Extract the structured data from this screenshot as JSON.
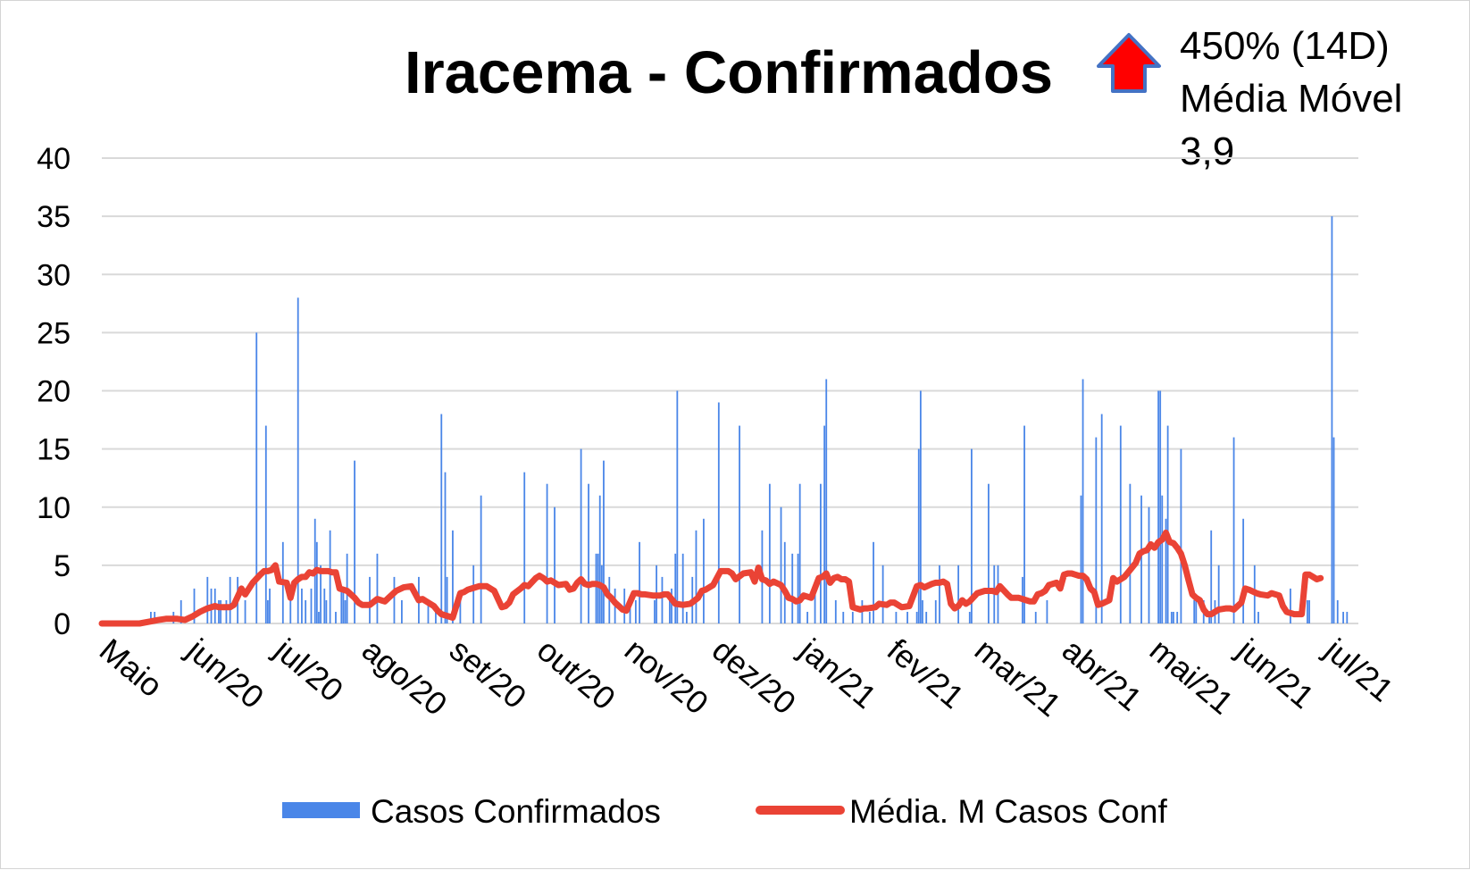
{
  "chart_data": {
    "type": "bar",
    "title": "Iracema - Confirmados",
    "badge": {
      "line1": "450% (14D)",
      "line2": "Média Móvel",
      "line3": "3,9",
      "arrow": "up-arrow-icon",
      "arrow_color": "#ff0000",
      "arrow_border": "#4472c4"
    },
    "y_ticks": [
      "0",
      "5",
      "10",
      "15",
      "20",
      "25",
      "30",
      "35",
      "40"
    ],
    "ylim": [
      0,
      40
    ],
    "grid": true,
    "x_tick_labels": [
      "Maio",
      "jun/20",
      "jul/20",
      "ago/20",
      "set/20",
      "out/20",
      "nov/20",
      "dez/20",
      "jan/21",
      "fev/21",
      "mar/21",
      "abr/21",
      "mai/21",
      "jun/21",
      "jul/21"
    ],
    "legend_position": "bottom",
    "series": [
      {
        "name": "Casos Confirmados",
        "type": "bar",
        "color": "#4a86e8",
        "values_day_index": [
          26,
          28,
          38,
          42,
          49,
          56,
          58,
          60,
          62,
          63,
          66,
          68,
          72,
          76,
          82,
          87,
          88,
          89,
          96,
          100,
          104,
          106,
          108,
          111,
          113,
          114,
          115,
          116,
          118,
          119,
          121,
          124,
          127,
          128,
          129,
          130,
          134,
          142,
          146,
          155,
          159,
          168,
          173,
          177,
          180,
          182,
          183,
          186,
          190,
          197,
          201,
          224,
          236,
          240,
          254,
          258,
          262,
          263,
          264,
          265,
          266,
          269,
          272,
          277,
          280,
          283,
          285,
          293,
          294,
          297,
          301,
          302,
          304,
          305,
          308,
          310,
          313,
          315,
          319,
          327,
          338,
          350,
          354,
          360,
          362,
          366,
          369,
          370,
          374,
          378,
          381,
          383,
          384,
          389,
          393,
          398,
          403,
          407,
          409,
          414,
          421,
          427,
          432,
          433,
          434,
          435,
          437,
          442,
          444,
          454,
          460,
          461,
          470,
          473,
          475,
          488,
          489,
          495,
          501,
          519,
          520,
          527,
          530,
          540,
          545,
          551,
          555,
          560,
          561,
          562,
          564,
          565,
          567,
          568,
          570,
          572,
          579,
          580,
          584,
          587,
          588,
          590,
          592,
          600,
          605,
          611,
          613,
          630,
          639,
          640,
          652,
          653,
          655,
          658,
          660
        ],
        "values": [
          1,
          1,
          1,
          2,
          3,
          4,
          3,
          3,
          2,
          2,
          2,
          4,
          4,
          2,
          25,
          17,
          2,
          3,
          7,
          3,
          28,
          3,
          2,
          3,
          9,
          7,
          1,
          5,
          3,
          2,
          8,
          1,
          3,
          3,
          2,
          6,
          14,
          4,
          6,
          4,
          2,
          4,
          2,
          1,
          18,
          13,
          4,
          8,
          2,
          5,
          11,
          13,
          12,
          10,
          15,
          12,
          6,
          6,
          11,
          5,
          14,
          4,
          3,
          3,
          2,
          2,
          7,
          2,
          5,
          4,
          2,
          3,
          6,
          20,
          6,
          1,
          4,
          8,
          9,
          19,
          17,
          8,
          12,
          10,
          7,
          6,
          6,
          12,
          1,
          3,
          12,
          17,
          21,
          2,
          1,
          1,
          2,
          1,
          7,
          5,
          1,
          1,
          1,
          15,
          20,
          2,
          1,
          2,
          5,
          5,
          1,
          15,
          12,
          5,
          5,
          4,
          17,
          1,
          2,
          11,
          21,
          16,
          18,
          17,
          12,
          11,
          10,
          20,
          20,
          11,
          9,
          17,
          1,
          1,
          1,
          15,
          2,
          2,
          2,
          1,
          8,
          2,
          5,
          16,
          9,
          5,
          1,
          3,
          2,
          2,
          35,
          16,
          2,
          1,
          1
        ]
      },
      {
        "name": "Média. M Casos Conf",
        "type": "line",
        "color": "#ea4335",
        "x_day_index": [
          0,
          20,
          30,
          34,
          40,
          44,
          48,
          52,
          56,
          60,
          62,
          64,
          68,
          70,
          74,
          76,
          80,
          84,
          86,
          88,
          90,
          92,
          94,
          98,
          100,
          102,
          104,
          106,
          108,
          110,
          112,
          114,
          116,
          118,
          120,
          122,
          124,
          126,
          130,
          132,
          134,
          136,
          138,
          140,
          142,
          146,
          148,
          150,
          152,
          154,
          156,
          160,
          164,
          166,
          168,
          170,
          172,
          176,
          178,
          180,
          182,
          186,
          190,
          192,
          194,
          196,
          200,
          204,
          208,
          212,
          214,
          216,
          218,
          222,
          224,
          226,
          230,
          232,
          234,
          236,
          238,
          242,
          246,
          248,
          250,
          252,
          254,
          256,
          258,
          260,
          262,
          264,
          266,
          268,
          270,
          272,
          274,
          276,
          278,
          282,
          284,
          286,
          288,
          292,
          294,
          296,
          298,
          300,
          304,
          308,
          312,
          316,
          318,
          320,
          324,
          328,
          332,
          334,
          336,
          340,
          344,
          346,
          348,
          350,
          352,
          354,
          356,
          360,
          362,
          364,
          366,
          368,
          370,
          372,
          376,
          380,
          382,
          384,
          386,
          388,
          390,
          392,
          394,
          396,
          398,
          402,
          404,
          406,
          410,
          412,
          416,
          418,
          420,
          424,
          428,
          432,
          434,
          436,
          440,
          442,
          444,
          446,
          448,
          450,
          452,
          454,
          456,
          458,
          460,
          464,
          468,
          472,
          474,
          476,
          480,
          482,
          486,
          490,
          492,
          494,
          496,
          498,
          500,
          502,
          506,
          508,
          510,
          512,
          514,
          516,
          518,
          520,
          522,
          524,
          526,
          528,
          530,
          534,
          536,
          538,
          540,
          542,
          546,
          548,
          550,
          552,
          554,
          556,
          558,
          560,
          562,
          564,
          566,
          568,
          570,
          572,
          574,
          576,
          578,
          580,
          582,
          584,
          586,
          588,
          590,
          592,
          596,
          598,
          600,
          604,
          606,
          608,
          612,
          614,
          618,
          620,
          624,
          626,
          628,
          630,
          632,
          636,
          638,
          640,
          642,
          644,
          646,
          650,
          654,
          656,
          660,
          664,
          666
        ],
        "y": [
          0,
          0,
          0.3,
          0.4,
          0.4,
          0.3,
          0.6,
          1.0,
          1.3,
          1.5,
          1.4,
          1.4,
          1.4,
          1.6,
          3.0,
          2.5,
          3.5,
          4.2,
          4.5,
          4.5,
          4.6,
          5.0,
          3.6,
          3.5,
          2.2,
          3.5,
          3.8,
          4.0,
          4.0,
          4.4,
          4.3,
          4.6,
          4.5,
          4.5,
          4.5,
          4.4,
          4.4,
          3.0,
          2.8,
          2.5,
          2.2,
          1.8,
          1.6,
          1.6,
          1.6,
          2.1,
          2.0,
          1.9,
          2.2,
          2.5,
          2.8,
          3.1,
          3.2,
          2.6,
          2.0,
          2.1,
          1.9,
          1.5,
          1.1,
          0.8,
          0.7,
          0.5,
          2.6,
          2.7,
          2.9,
          3.0,
          3.2,
          3.2,
          2.8,
          1.4,
          1.5,
          1.8,
          2.5,
          3.0,
          3.3,
          3.2,
          3.9,
          4.1,
          3.9,
          3.6,
          3.7,
          3.3,
          3.4,
          2.9,
          3.0,
          3.5,
          3.8,
          3.4,
          3.3,
          3.4,
          3.4,
          3.3,
          3.1,
          2.5,
          2.2,
          1.8,
          1.5,
          1.2,
          1.1,
          2.6,
          2.6,
          2.5,
          2.5,
          2.4,
          2.4,
          2.4,
          2.5,
          2.5,
          1.7,
          1.6,
          1.7,
          2.2,
          2.8,
          2.9,
          3.3,
          4.5,
          4.5,
          4.3,
          3.8,
          4.3,
          4.4,
          3.6,
          4.8,
          3.8,
          3.7,
          3.4,
          3.6,
          3.3,
          2.8,
          2.2,
          2.1,
          1.9,
          2.0,
          2.4,
          2.2,
          3.9,
          4.0,
          4.3,
          3.5,
          3.9,
          4.0,
          3.8,
          3.8,
          3.6,
          1.4,
          1.2,
          1.3,
          1.3,
          1.4,
          1.7,
          1.6,
          1.8,
          1.8,
          1.4,
          1.5,
          3.2,
          3.3,
          3.1,
          3.4,
          3.5,
          3.5,
          3.6,
          3.4,
          1.7,
          1.3,
          1.5,
          2.0,
          1.7,
          1.9,
          2.6,
          2.8,
          2.8,
          2.7,
          3.2,
          2.5,
          2.2,
          2.2,
          2.0,
          1.9,
          1.9,
          2.5,
          2.6,
          2.8,
          3.3,
          3.5,
          3.0,
          4.2,
          4.3,
          4.3,
          4.2,
          4.1,
          4.1,
          3.8,
          3.0,
          2.7,
          1.6,
          1.7,
          2.0,
          3.9,
          3.6,
          3.8,
          4.0,
          4.8,
          5.2,
          6.0,
          6.2,
          6.3,
          6.8,
          6.5,
          7.0,
          7.2,
          7.8,
          7.0,
          6.9,
          6.5,
          6.0,
          5.0,
          3.7,
          2.5,
          2.2,
          2.0,
          1.2,
          0.8,
          0.8,
          1.0,
          1.2,
          1.3,
          1.3,
          1.2,
          1.8,
          3.0,
          2.9,
          2.6,
          2.5,
          2.4,
          2.6,
          2.4,
          1.5,
          1.0,
          0.9,
          0.8,
          0.8,
          4.2,
          4.2,
          4.0,
          3.8,
          3.9
        ]
      }
    ]
  }
}
